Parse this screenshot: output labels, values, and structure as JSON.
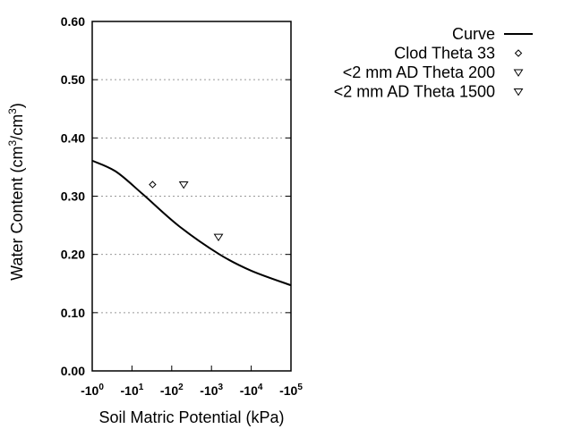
{
  "chart_data": {
    "type": "line",
    "title": "",
    "xlabel": "Soil Matric Potential (kPa)",
    "ylabel_parts": [
      "Water Content (cm",
      "3",
      "/cm",
      "3",
      ")"
    ],
    "x_scale": "log (negative potentials)",
    "xlim": [
      -1,
      -100000
    ],
    "ylim": [
      0,
      0.6
    ],
    "x_ticks": [
      {
        "base": "-10",
        "exp": "0",
        "value": -1
      },
      {
        "base": "-10",
        "exp": "1",
        "value": -10
      },
      {
        "base": "-10",
        "exp": "2",
        "value": -100
      },
      {
        "base": "-10",
        "exp": "3",
        "value": -1000
      },
      {
        "base": "-10",
        "exp": "4",
        "value": -10000
      },
      {
        "base": "-10",
        "exp": "5",
        "value": -100000
      }
    ],
    "y_ticks": [
      "0.00",
      "0.10",
      "0.20",
      "0.30",
      "0.40",
      "0.50",
      "0.60"
    ],
    "grid": "horizontal dotted",
    "legend_placement": "right",
    "series": [
      {
        "name": "Curve",
        "kind": "line",
        "color": "#000000",
        "x": [
          -1,
          -4,
          -19,
          -150,
          -1600,
          -10000,
          -100000
        ],
        "y": [
          0.361,
          0.342,
          0.303,
          0.249,
          0.2,
          0.172,
          0.147
        ]
      },
      {
        "name": "Clod Theta 33",
        "kind": "marker",
        "marker": "diamond",
        "x": [
          -33
        ],
        "y": [
          0.32
        ]
      },
      {
        "name": "<2 mm AD Theta 200",
        "kind": "marker",
        "marker": "triangle-down",
        "x": [
          -200
        ],
        "y": [
          0.32
        ]
      },
      {
        "name": "<2 mm AD Theta 1500",
        "kind": "marker",
        "marker": "triangle-down",
        "x": [
          -1500
        ],
        "y": [
          0.23
        ]
      }
    ]
  }
}
